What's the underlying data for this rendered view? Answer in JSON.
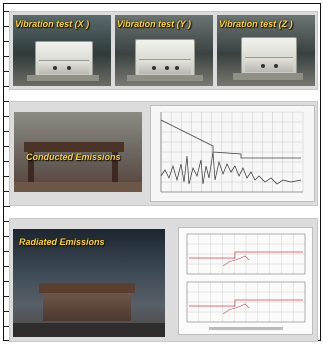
{
  "vibration": {
    "label_x": "Vibration test (X    )",
    "label_y": "Vibration test (Y    )",
    "label_z": "Vibration test (Z    )"
  },
  "conducted": {
    "label": "Conducted Emissions"
  },
  "radiated": {
    "label": "Radiated Emissions"
  },
  "colors": {
    "label": "#ffd21f",
    "panel": "#dcdcdc",
    "spectrum": "#333333",
    "limit_line": "#e04040"
  }
}
